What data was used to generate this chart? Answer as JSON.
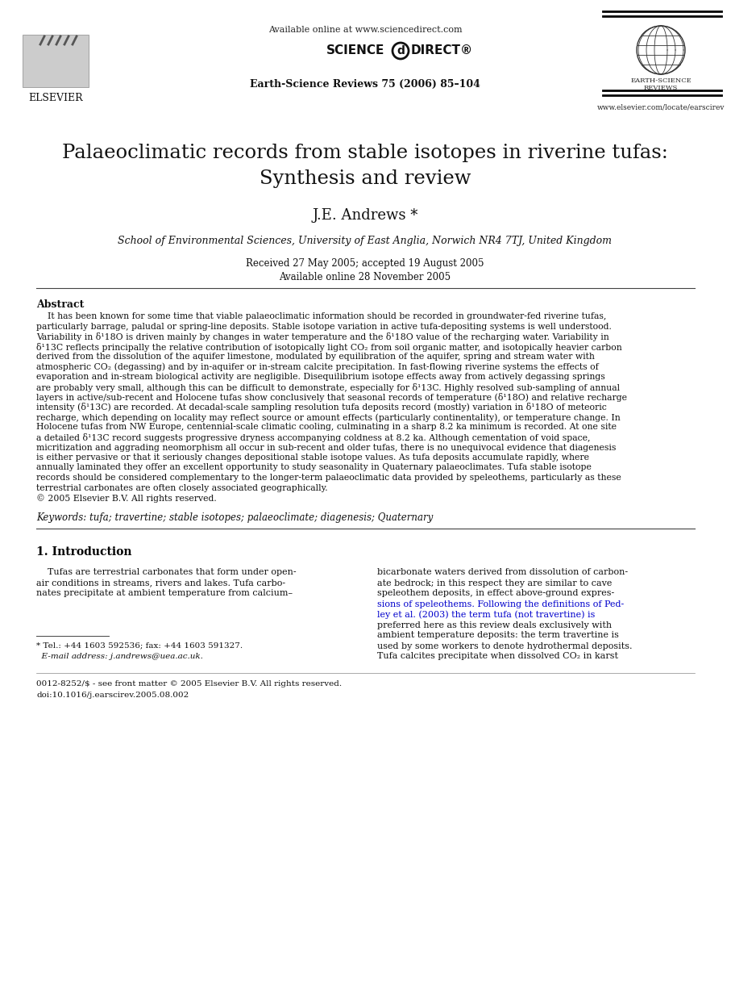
{
  "bg_color": "#ffffff",
  "header_available_online": "Available online at www.sciencedirect.com",
  "journal_info": "Earth-Science Reviews 75 (2006) 85–104",
  "journal_url": "www.elsevier.com/locate/earscirev",
  "elsevier_label": "ELSEVIER",
  "title_line1": "Palaeoclimatic records from stable isotopes in riverine tufas:",
  "title_line2": "Synthesis and review",
  "author": "J.E. Andrews *",
  "affiliation": "School of Environmental Sciences, University of East Anglia, Norwich NR4 7TJ, United Kingdom",
  "received": "Received 27 May 2005; accepted 19 August 2005",
  "available": "Available online 28 November 2005",
  "abstract_heading": "Abstract",
  "abstract_text_lines": [
    "    It has been known for some time that viable palaeoclimatic information should be recorded in groundwater-fed riverine tufas,",
    "particularly barrage, paludal or spring-line deposits. Stable isotope variation in active tufa-depositing systems is well understood.",
    "Variability in δ¹18O is driven mainly by changes in water temperature and the δ¹18O value of the recharging water. Variability in",
    "δ¹13C reflects principally the relative contribution of isotopically light CO₂ from soil organic matter, and isotopically heavier carbon",
    "derived from the dissolution of the aquifer limestone, modulated by equilibration of the aquifer, spring and stream water with",
    "atmospheric CO₂ (degassing) and by in-aquifer or in-stream calcite precipitation. In fast-flowing riverine systems the effects of",
    "evaporation and in-stream biological activity are negligible. Disequilibrium isotope effects away from actively degassing springs",
    "are probably very small, although this can be difficult to demonstrate, especially for δ¹13C. Highly resolved sub-sampling of annual",
    "layers in active/sub-recent and Holocene tufas show conclusively that seasonal records of temperature (δ¹18O) and relative recharge",
    "intensity (δ¹13C) are recorded. At decadal-scale sampling resolution tufa deposits record (mostly) variation in δ¹18O of meteoric",
    "recharge, which depending on locality may reflect source or amount effects (particularly continentality), or temperature change. In",
    "Holocene tufas from NW Europe, centennial-scale climatic cooling, culminating in a sharp 8.2 ka minimum is recorded. At one site",
    "a detailed δ¹13C record suggests progressive dryness accompanying coldness at 8.2 ka. Although cementation of void space,",
    "micritization and aggrading neomorphism all occur in sub-recent and older tufas, there is no unequivocal evidence that diagenesis",
    "is either pervasive or that it seriously changes depositional stable isotope values. As tufa deposits accumulate rapidly, where",
    "annually laminated they offer an excellent opportunity to study seasonality in Quaternary palaeoclimates. Tufa stable isotope",
    "records should be considered complementary to the longer-term palaeoclimatic data provided by speleothems, particularly as these",
    "terrestrial carbonates are often closely associated geographically.",
    "© 2005 Elsevier B.V. All rights reserved."
  ],
  "keywords": "Keywords: tufa; travertine; stable isotopes; palaeoclimate; diagenesis; Quaternary",
  "section1_heading": "1. Introduction",
  "section1_col1_lines": [
    "    Tufas are terrestrial carbonates that form under open-",
    "air conditions in streams, rivers and lakes. Tufa carbo-",
    "nates precipitate at ambient temperature from calcium–"
  ],
  "section1_col2_lines": [
    "bicarbonate waters derived from dissolution of carbon-",
    "ate bedrock; in this respect they are similar to cave",
    "speleothem deposits, in effect above-ground expres-",
    "sions of speleothems. Following the definitions of Ped-",
    "ley et al. (2003) the term tufa (not travertine) is",
    "preferred here as this review deals exclusively with",
    "ambient temperature deposits: the term travertine is",
    "used by some workers to denote hydrothermal deposits.",
    "Tufa calcites precipitate when dissolved CO₂ in karst"
  ],
  "section1_col2_link_lines": [
    3,
    4
  ],
  "footnote_line1": "* Tel.: +44 1603 592536; fax: +44 1603 591327.",
  "footnote_line2": "  E-mail address: j.andrews@uea.ac.uk.",
  "bottom_line1": "0012-8252/$ - see front matter © 2005 Elsevier B.V. All rights reserved.",
  "bottom_line2": "doi:10.1016/j.earscirev.2005.08.002"
}
